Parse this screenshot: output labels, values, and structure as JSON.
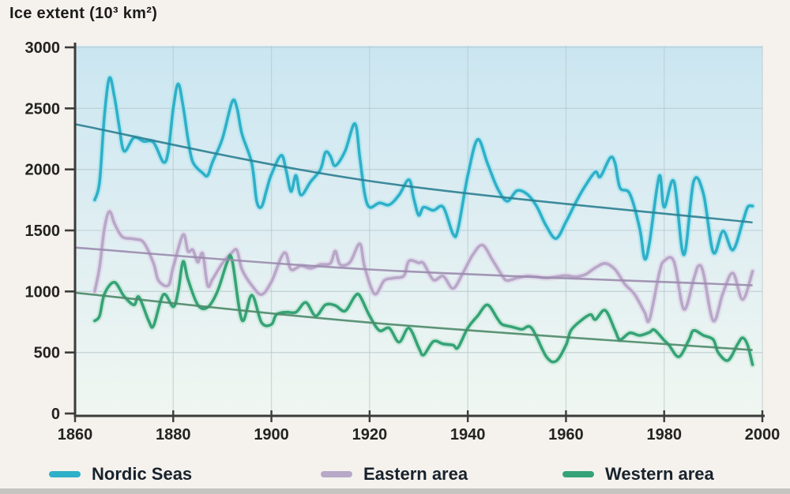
{
  "chart_data": {
    "type": "line",
    "title": "Ice extent (10³ km²)",
    "x_axis": {
      "min": 1860,
      "max": 2000,
      "ticks": [
        1860,
        1880,
        1900,
        1920,
        1940,
        1960,
        1980,
        2000
      ]
    },
    "y_axis": {
      "min": 0,
      "max": 3000,
      "ticks": [
        0,
        500,
        1000,
        1500,
        2000,
        2500,
        3000
      ],
      "label": "Ice extent (10³ km²)"
    },
    "grid": true,
    "legend_position": "bottom",
    "plot_bg_gradient": [
      "#cae6f1",
      "#dfeef2",
      "#f0f7f1"
    ],
    "gridline_color": "#b6c5c9",
    "axis_color": "#3c3c3a",
    "tick_label_color": "#232320",
    "series": [
      {
        "name": "Nordic Seas",
        "color": "#2eb0c8",
        "halo_color": "#aee3ee",
        "trend_color": "#2b7f91",
        "trend": [
          [
            1860,
            2370
          ],
          [
            1920,
            1905
          ],
          [
            1998,
            1565
          ]
        ],
        "points": [
          [
            1864,
            1750
          ],
          [
            1865,
            1900
          ],
          [
            1866,
            2450
          ],
          [
            1867,
            2750
          ],
          [
            1868,
            2600
          ],
          [
            1869,
            2350
          ],
          [
            1870,
            2150
          ],
          [
            1872,
            2260
          ],
          [
            1874,
            2230
          ],
          [
            1876,
            2220
          ],
          [
            1878,
            2060
          ],
          [
            1879,
            2150
          ],
          [
            1880,
            2500
          ],
          [
            1881,
            2700
          ],
          [
            1882,
            2520
          ],
          [
            1883,
            2250
          ],
          [
            1884,
            2060
          ],
          [
            1886,
            1970
          ],
          [
            1887,
            1950
          ],
          [
            1888,
            2060
          ],
          [
            1890,
            2250
          ],
          [
            1892,
            2555
          ],
          [
            1893,
            2500
          ],
          [
            1894,
            2290
          ],
          [
            1896,
            2050
          ],
          [
            1897,
            1740
          ],
          [
            1898,
            1695
          ],
          [
            1899,
            1830
          ],
          [
            1900,
            1960
          ],
          [
            1902,
            2115
          ],
          [
            1903,
            1990
          ],
          [
            1904,
            1820
          ],
          [
            1905,
            1950
          ],
          [
            1906,
            1790
          ],
          [
            1908,
            1900
          ],
          [
            1910,
            2000
          ],
          [
            1911,
            2140
          ],
          [
            1912,
            2110
          ],
          [
            1913,
            2030
          ],
          [
            1915,
            2150
          ],
          [
            1917,
            2375
          ],
          [
            1918,
            2100
          ],
          [
            1919,
            1800
          ],
          [
            1920,
            1690
          ],
          [
            1922,
            1725
          ],
          [
            1924,
            1710
          ],
          [
            1926,
            1790
          ],
          [
            1928,
            1915
          ],
          [
            1929,
            1760
          ],
          [
            1930,
            1625
          ],
          [
            1931,
            1690
          ],
          [
            1933,
            1665
          ],
          [
            1935,
            1690
          ],
          [
            1937,
            1470
          ],
          [
            1938,
            1510
          ],
          [
            1940,
            1950
          ],
          [
            1942,
            2245
          ],
          [
            1944,
            2050
          ],
          [
            1946,
            1850
          ],
          [
            1948,
            1740
          ],
          [
            1950,
            1825
          ],
          [
            1952,
            1800
          ],
          [
            1954,
            1700
          ],
          [
            1956,
            1535
          ],
          [
            1958,
            1435
          ],
          [
            1960,
            1570
          ],
          [
            1962,
            1730
          ],
          [
            1964,
            1870
          ],
          [
            1966,
            1980
          ],
          [
            1967,
            1940
          ],
          [
            1969,
            2095
          ],
          [
            1970,
            2050
          ],
          [
            1971,
            1850
          ],
          [
            1973,
            1800
          ],
          [
            1975,
            1520
          ],
          [
            1976,
            1270
          ],
          [
            1977,
            1400
          ],
          [
            1979,
            1945
          ],
          [
            1980,
            1690
          ],
          [
            1982,
            1900
          ],
          [
            1984,
            1300
          ],
          [
            1986,
            1900
          ],
          [
            1988,
            1800
          ],
          [
            1990,
            1320
          ],
          [
            1992,
            1495
          ],
          [
            1994,
            1340
          ],
          [
            1996,
            1570
          ],
          [
            1997,
            1690
          ],
          [
            1998,
            1700
          ]
        ]
      },
      {
        "name": "Eastern area",
        "color": "#b7a8c8",
        "halo_color": "#e0d8ea",
        "trend_color": "#9b8cae",
        "trend": [
          [
            1860,
            1360
          ],
          [
            1920,
            1180
          ],
          [
            1998,
            1050
          ]
        ],
        "points": [
          [
            1864,
            1000
          ],
          [
            1865,
            1200
          ],
          [
            1866,
            1520
          ],
          [
            1867,
            1655
          ],
          [
            1868,
            1560
          ],
          [
            1869,
            1480
          ],
          [
            1870,
            1440
          ],
          [
            1872,
            1430
          ],
          [
            1874,
            1400
          ],
          [
            1876,
            1230
          ],
          [
            1877,
            1090
          ],
          [
            1879,
            1050
          ],
          [
            1880,
            1200
          ],
          [
            1882,
            1465
          ],
          [
            1883,
            1330
          ],
          [
            1884,
            1340
          ],
          [
            1885,
            1240
          ],
          [
            1886,
            1310
          ],
          [
            1887,
            1050
          ],
          [
            1888,
            1100
          ],
          [
            1890,
            1230
          ],
          [
            1892,
            1320
          ],
          [
            1893,
            1335
          ],
          [
            1894,
            1180
          ],
          [
            1896,
            1050
          ],
          [
            1898,
            975
          ],
          [
            1900,
            1080
          ],
          [
            1902,
            1280
          ],
          [
            1903,
            1310
          ],
          [
            1904,
            1180
          ],
          [
            1906,
            1210
          ],
          [
            1908,
            1190
          ],
          [
            1910,
            1220
          ],
          [
            1912,
            1230
          ],
          [
            1913,
            1330
          ],
          [
            1914,
            1220
          ],
          [
            1916,
            1240
          ],
          [
            1918,
            1390
          ],
          [
            1919,
            1200
          ],
          [
            1921,
            980
          ],
          [
            1923,
            1090
          ],
          [
            1925,
            1110
          ],
          [
            1927,
            1130
          ],
          [
            1928,
            1250
          ],
          [
            1930,
            1235
          ],
          [
            1931,
            1230
          ],
          [
            1933,
            1095
          ],
          [
            1935,
            1125
          ],
          [
            1937,
            1025
          ],
          [
            1939,
            1150
          ],
          [
            1941,
            1300
          ],
          [
            1943,
            1380
          ],
          [
            1945,
            1260
          ],
          [
            1947,
            1130
          ],
          [
            1948,
            1090
          ],
          [
            1950,
            1110
          ],
          [
            1952,
            1125
          ],
          [
            1954,
            1120
          ],
          [
            1956,
            1110
          ],
          [
            1958,
            1120
          ],
          [
            1960,
            1130
          ],
          [
            1962,
            1120
          ],
          [
            1964,
            1140
          ],
          [
            1966,
            1195
          ],
          [
            1968,
            1230
          ],
          [
            1970,
            1180
          ],
          [
            1972,
            1060
          ],
          [
            1974,
            975
          ],
          [
            1976,
            830
          ],
          [
            1977,
            770
          ],
          [
            1979,
            1150
          ],
          [
            1980,
            1250
          ],
          [
            1982,
            1245
          ],
          [
            1984,
            855
          ],
          [
            1986,
            1100
          ],
          [
            1987,
            1210
          ],
          [
            1988,
            1150
          ],
          [
            1990,
            760
          ],
          [
            1992,
            990
          ],
          [
            1994,
            1150
          ],
          [
            1996,
            935
          ],
          [
            1998,
            1165
          ]
        ]
      },
      {
        "name": "Western area",
        "color": "#35a377",
        "halo_color": "#c4e6d6",
        "trend_color": "#4d8a69",
        "trend": [
          [
            1860,
            990
          ],
          [
            1920,
            745
          ],
          [
            1998,
            520
          ]
        ],
        "points": [
          [
            1864,
            760
          ],
          [
            1865,
            800
          ],
          [
            1866,
            980
          ],
          [
            1868,
            1075
          ],
          [
            1870,
            960
          ],
          [
            1872,
            890
          ],
          [
            1873,
            955
          ],
          [
            1875,
            760
          ],
          [
            1876,
            720
          ],
          [
            1878,
            975
          ],
          [
            1880,
            875
          ],
          [
            1881,
            1000
          ],
          [
            1882,
            1245
          ],
          [
            1883,
            1100
          ],
          [
            1885,
            890
          ],
          [
            1887,
            870
          ],
          [
            1889,
            1000
          ],
          [
            1891,
            1240
          ],
          [
            1892,
            1255
          ],
          [
            1894,
            765
          ],
          [
            1896,
            970
          ],
          [
            1898,
            745
          ],
          [
            1900,
            730
          ],
          [
            1901,
            810
          ],
          [
            1903,
            830
          ],
          [
            1905,
            830
          ],
          [
            1907,
            910
          ],
          [
            1909,
            800
          ],
          [
            1911,
            890
          ],
          [
            1913,
            885
          ],
          [
            1915,
            840
          ],
          [
            1917,
            960
          ],
          [
            1918,
            965
          ],
          [
            1920,
            800
          ],
          [
            1922,
            680
          ],
          [
            1924,
            700
          ],
          [
            1926,
            585
          ],
          [
            1928,
            700
          ],
          [
            1930,
            540
          ],
          [
            1931,
            480
          ],
          [
            1933,
            590
          ],
          [
            1935,
            570
          ],
          [
            1937,
            560
          ],
          [
            1938,
            540
          ],
          [
            1940,
            700
          ],
          [
            1942,
            800
          ],
          [
            1944,
            890
          ],
          [
            1946,
            780
          ],
          [
            1947,
            730
          ],
          [
            1949,
            710
          ],
          [
            1951,
            690
          ],
          [
            1953,
            700
          ],
          [
            1956,
            465
          ],
          [
            1958,
            430
          ],
          [
            1960,
            560
          ],
          [
            1961,
            680
          ],
          [
            1963,
            760
          ],
          [
            1965,
            810
          ],
          [
            1966,
            770
          ],
          [
            1968,
            845
          ],
          [
            1970,
            680
          ],
          [
            1971,
            605
          ],
          [
            1973,
            660
          ],
          [
            1975,
            640
          ],
          [
            1977,
            665
          ],
          [
            1978,
            685
          ],
          [
            1980,
            600
          ],
          [
            1981,
            560
          ],
          [
            1983,
            465
          ],
          [
            1985,
            600
          ],
          [
            1986,
            680
          ],
          [
            1988,
            640
          ],
          [
            1990,
            605
          ],
          [
            1991,
            500
          ],
          [
            1993,
            435
          ],
          [
            1995,
            570
          ],
          [
            1996,
            620
          ],
          [
            1997,
            560
          ],
          [
            1998,
            400
          ]
        ]
      }
    ]
  }
}
